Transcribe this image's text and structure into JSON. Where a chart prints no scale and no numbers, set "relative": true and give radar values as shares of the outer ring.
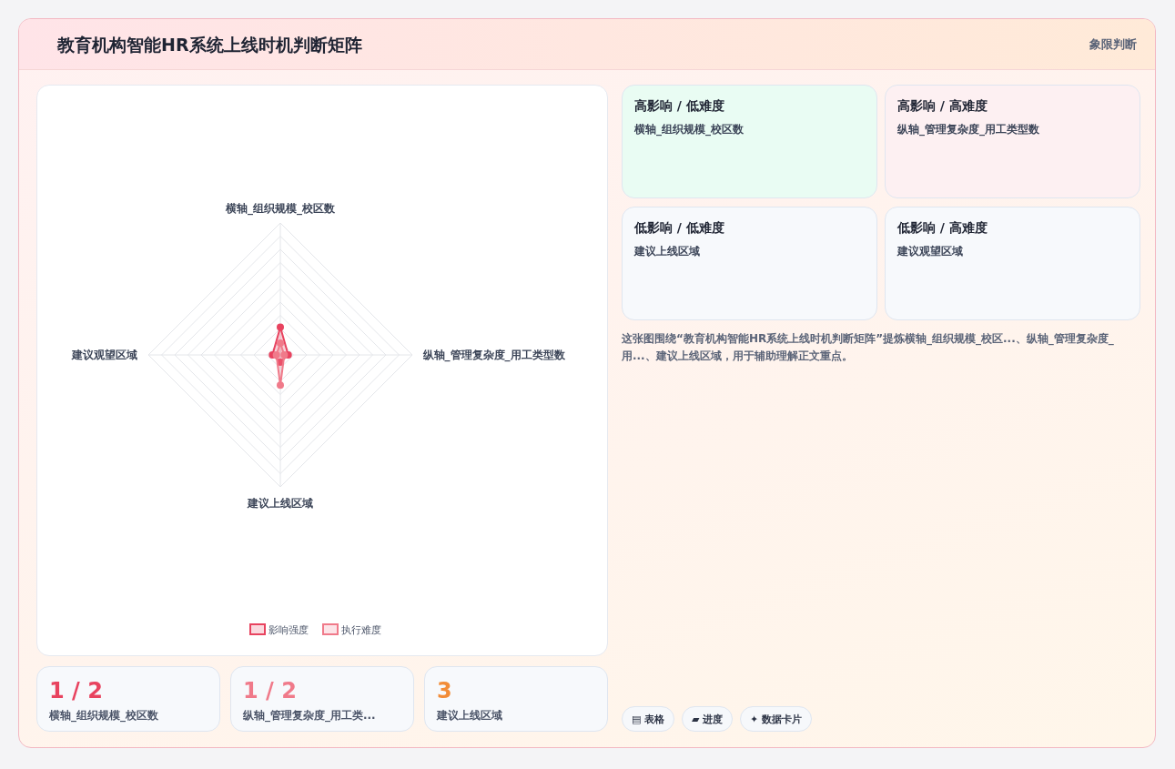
{
  "chart_data": [
    {
      "type": "other",
      "title": "教育机构智能HR系统上线时机判断矩阵",
      "subtitle": "象限判断"
    },
    {
      "type": "radar",
      "categories": [
        "横轴_组织规模_校区数",
        "纵轴_管理复杂度_用工类型数",
        "建议上线区域",
        "建议观望区域"
      ],
      "relative": true,
      "legend": "bottom",
      "marker": "circle",
      "grid": true,
      "series": [
        {
          "name": "影响强度",
          "color": "#e8435f",
          "values": [
            0.21,
            0.06,
            0.055,
            0.06
          ]
        },
        {
          "name": "执行难度",
          "color": "#f07a8a",
          "values": [
            0.09,
            0.03,
            0.23,
            0.03
          ]
        }
      ]
    },
    {
      "type": "other",
      "annotations": [
        "高影响 / 低难度",
        "横轴_组织规模_校区数",
        "高影响 / 高难度",
        "纵轴_管理复杂度_用工类型数",
        "低影响 / 低难度",
        "建议上线区域",
        "低影响 / 高难度",
        "建议观望区域"
      ],
      "colors": [
        "#e9fcf3",
        "#fdf0f2",
        "#f7f9fc",
        "#f7f9fc"
      ]
    },
    {
      "type": "other",
      "annotations": [
        "1 / 2",
        "横轴_组织规模_校区数",
        "1 / 2",
        "纵轴_管理复杂度_用工类...",
        "3",
        "建议上线区域"
      ],
      "colors": [
        "#e8435f",
        "#f07a8a",
        "#f28c38"
      ]
    },
    {
      "type": "other",
      "annotations": [
        "这张图围绕“教育机构智能HR系统上线时机判断矩阵”提炼横轴_组织规模_校区...、纵轴_管理复杂度_用...、建议上线区域，用于辅助理解正文重点。",
        "▤ 表格",
        "▰ 进度",
        "✦ 数据卡片"
      ]
    }
  ]
}
